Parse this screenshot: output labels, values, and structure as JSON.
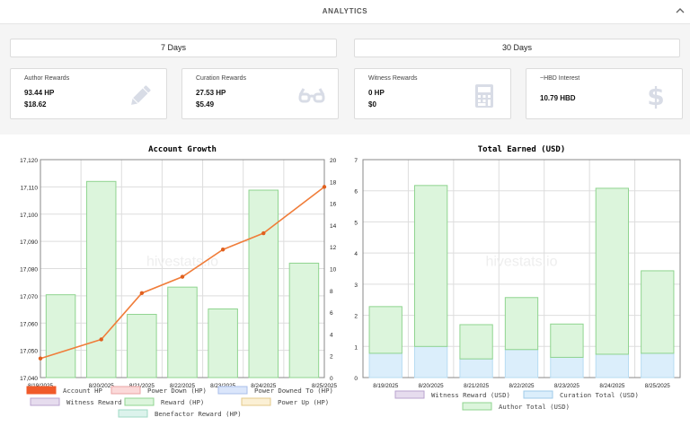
{
  "header": {
    "title": "ANALYTICS"
  },
  "periods": [
    "7 Days",
    "30 Days"
  ],
  "cards": [
    {
      "label": "Author Rewards",
      "value1": "93.44 HP",
      "value2": "$18.62",
      "icon": "pencil-icon"
    },
    {
      "label": "Curation Rewards",
      "value1": "27.53 HP",
      "value2": "$5.49",
      "icon": "glasses-icon"
    },
    {
      "label": "Witness Rewards",
      "value1": "0 HP",
      "value2": "$0",
      "icon": "calculator-icon"
    },
    {
      "label": "~HBD Interest",
      "value1": "10.79 HBD",
      "value2": "",
      "icon": "dollar-icon"
    }
  ],
  "watermark": "hivestats.io",
  "colors": {
    "accent_line": "#f07d3a",
    "bar_green_fill": "#dcf5dc",
    "bar_green_stroke": "#8fd48f",
    "bar_blue_fill": "#dbeefb",
    "icon_gray": "#d8dce6"
  },
  "chart_data": [
    {
      "type": "bar",
      "title": "Account Growth",
      "categories": [
        "8/19/2025",
        "8/20/2025",
        "8/21/2025",
        "8/22/2025",
        "8/23/2025",
        "8/24/2025",
        "8/25/2025"
      ],
      "y_left": {
        "min": 17040,
        "max": 17120,
        "step": 10,
        "ticks": [
          "17,040",
          "17,050",
          "17,060",
          "17,070",
          "17,080",
          "17,090",
          "17,100",
          "17,110",
          "17,120"
        ]
      },
      "y_right": {
        "min": 0,
        "max": 20,
        "step": 2,
        "ticks": [
          "0",
          "2",
          "4",
          "6",
          "8",
          "10",
          "12",
          "14",
          "16",
          "18",
          "20"
        ]
      },
      "series": [
        {
          "name": "Account HP",
          "kind": "line",
          "axis": "left",
          "values": [
            17047,
            17054,
            17071,
            17077,
            17087,
            17093,
            17110
          ]
        },
        {
          "name": "Reward (HP)",
          "kind": "bar",
          "axis": "right",
          "values": [
            7.6,
            18.0,
            5.8,
            8.3,
            6.3,
            17.2,
            10.5
          ]
        }
      ],
      "legend": [
        {
          "label": "Account HP",
          "fill": "#f05a2a",
          "stroke": "#f05a2a"
        },
        {
          "label": "Power Down (HP)",
          "fill": "#fbd9d9",
          "stroke": "#e9a3a3"
        },
        {
          "label": "Power Downed To (HP)",
          "fill": "#dbe6fb",
          "stroke": "#a8bde9"
        },
        {
          "label": "Witness Reward (HP)",
          "fill": "#e6dcee",
          "stroke": "#b9a3cf"
        },
        {
          "label": "Reward (HP)",
          "fill": "#dcf5dc",
          "stroke": "#8fd48f"
        },
        {
          "label": "Power Up (HP)",
          "fill": "#fbf0d5",
          "stroke": "#e3c888"
        },
        {
          "label": "Benefactor Reward (HP)",
          "fill": "#dcf3ec",
          "stroke": "#9fd8c4"
        }
      ]
    },
    {
      "type": "bar",
      "title": "Total Earned (USD)",
      "categories": [
        "8/19/2025",
        "8/20/2025",
        "8/21/2025",
        "8/22/2025",
        "8/23/2025",
        "8/24/2025",
        "8/25/2025"
      ],
      "y": {
        "min": 0,
        "max": 7,
        "step": 1,
        "ticks": [
          "0",
          "1",
          "2",
          "3",
          "4",
          "5",
          "6",
          "7"
        ]
      },
      "stacked": true,
      "series": [
        {
          "name": "Witness Reward (USD)",
          "values": [
            0,
            0,
            0,
            0,
            0,
            0,
            0
          ]
        },
        {
          "name": "Curation Total (USD)",
          "values": [
            0.78,
            1.0,
            0.6,
            0.9,
            0.65,
            0.75,
            0.78
          ]
        },
        {
          "name": "Author Total (USD)",
          "values": [
            1.5,
            5.17,
            1.1,
            1.67,
            1.07,
            5.33,
            2.65
          ]
        }
      ],
      "legend": [
        {
          "label": "Witness Reward (USD)",
          "fill": "#e6dcee",
          "stroke": "#b9a3cf"
        },
        {
          "label": "Curation Total (USD)",
          "fill": "#dbeefb",
          "stroke": "#9fcbe9"
        },
        {
          "label": "Author Total (USD)",
          "fill": "#dcf5dc",
          "stroke": "#8fd48f"
        }
      ]
    }
  ]
}
